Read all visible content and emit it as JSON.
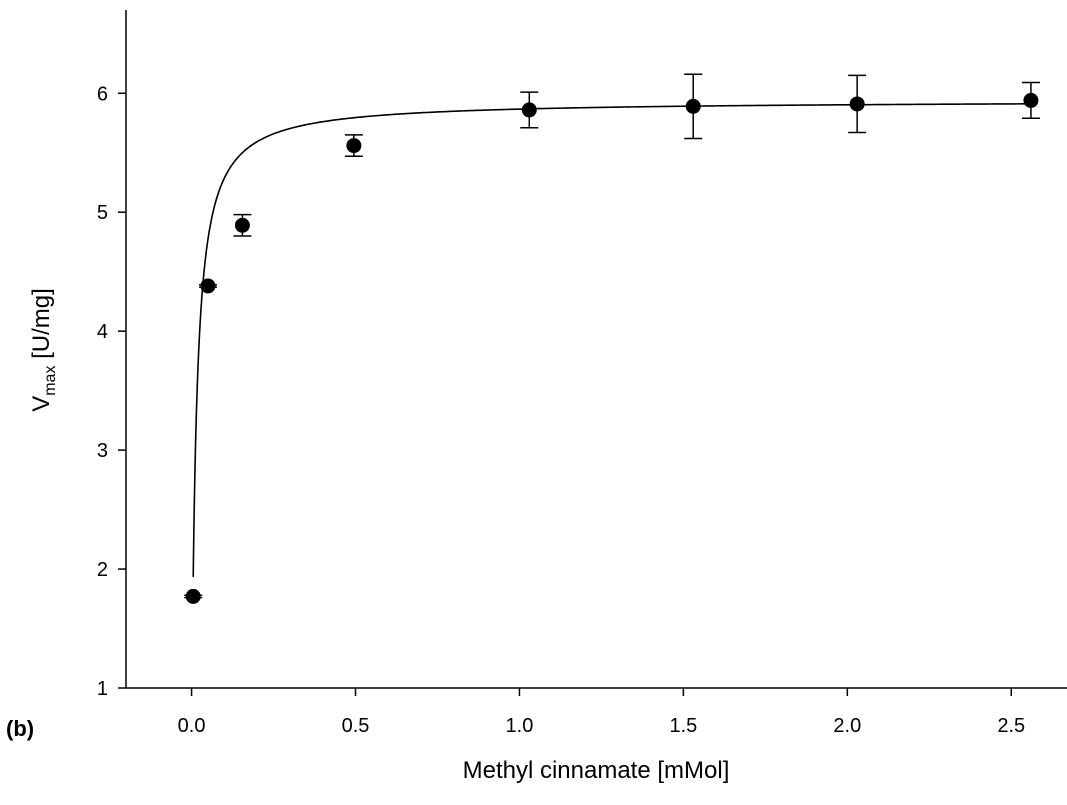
{
  "panel_label": "(b)",
  "chart_data": {
    "type": "scatter",
    "xlabel": "Methyl cinnamate [mMol]",
    "ylabel": {
      "main": "V",
      "subscript": "max",
      "suffix": " [U/mg]"
    },
    "xlim": [
      -0.2,
      2.67
    ],
    "ylim": [
      1,
      6.7
    ],
    "x_ticks": [
      0.0,
      0.5,
      1.0,
      1.5,
      2.0,
      2.5
    ],
    "x_tick_labels": [
      "0.0",
      "0.5",
      "1.0",
      "1.5",
      "2.0",
      "2.5"
    ],
    "y_ticks": [
      1,
      2,
      3,
      4,
      5,
      6
    ],
    "y_tick_labels": [
      "1",
      "2",
      "3",
      "4",
      "5",
      "6"
    ],
    "grid": false,
    "series": [
      {
        "points": [
          {
            "x": 0.005,
            "y": 1.77,
            "err": 0.01
          },
          {
            "x": 0.05,
            "y": 4.38,
            "err": 0.01
          },
          {
            "x": 0.155,
            "y": 4.89,
            "err": 0.09
          },
          {
            "x": 0.495,
            "y": 5.56,
            "err": 0.09
          },
          {
            "x": 1.03,
            "y": 5.86,
            "err": 0.15
          },
          {
            "x": 1.53,
            "y": 5.89,
            "err": 0.27
          },
          {
            "x": 2.03,
            "y": 5.91,
            "err": 0.24
          },
          {
            "x": 2.56,
            "y": 5.94,
            "err": 0.15
          }
        ]
      }
    ],
    "fit_curve": {
      "model": "Michaelis-Menten",
      "x_start": 0.005,
      "x_end": 2.56
    }
  }
}
